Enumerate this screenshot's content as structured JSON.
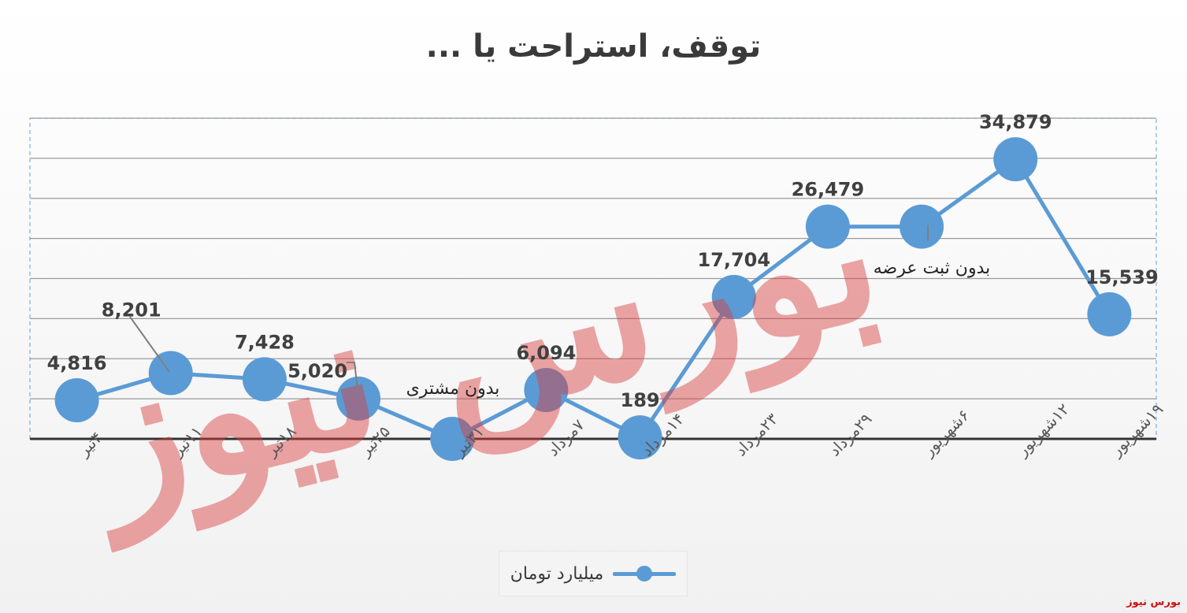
{
  "source_label": "بورس نیوز",
  "watermark_text": "بورس نیوز",
  "chart_data": {
    "type": "line",
    "title": "توقف، استراحت یا ...",
    "xlabel": "",
    "ylabel": "",
    "ylim": [
      0,
      40000
    ],
    "grid": true,
    "legend_position": "bottom",
    "categories": [
      "۴تیر",
      "۱۱تیر",
      "۱۸تیر",
      "۲۵تیر",
      "۳۱تیر",
      "۷مرداد",
      "۱۴مرداد",
      "۲۳مرداد",
      "۲۹مرداد",
      "۶شهریور",
      "۱۲شهریور",
      "۱۹شهریور"
    ],
    "series": [
      {
        "name": "میلیارد تومان",
        "color": "#5b9bd5",
        "values": [
          4816,
          8201,
          7428,
          5020,
          0,
          6094,
          189,
          17704,
          26479,
          26479,
          34879,
          15539
        ],
        "data_labels": [
          "4,816",
          "8,201",
          "7,428",
          "5,020",
          "",
          "6,094",
          "189",
          "17,704",
          "26,479",
          "",
          "34,879",
          "15,539"
        ]
      }
    ],
    "annotations": [
      {
        "category": "۳۱تیر",
        "text": "بدون مشتری"
      },
      {
        "category": "۶شهریور",
        "text": "بدون ثبت عرضه"
      }
    ]
  }
}
